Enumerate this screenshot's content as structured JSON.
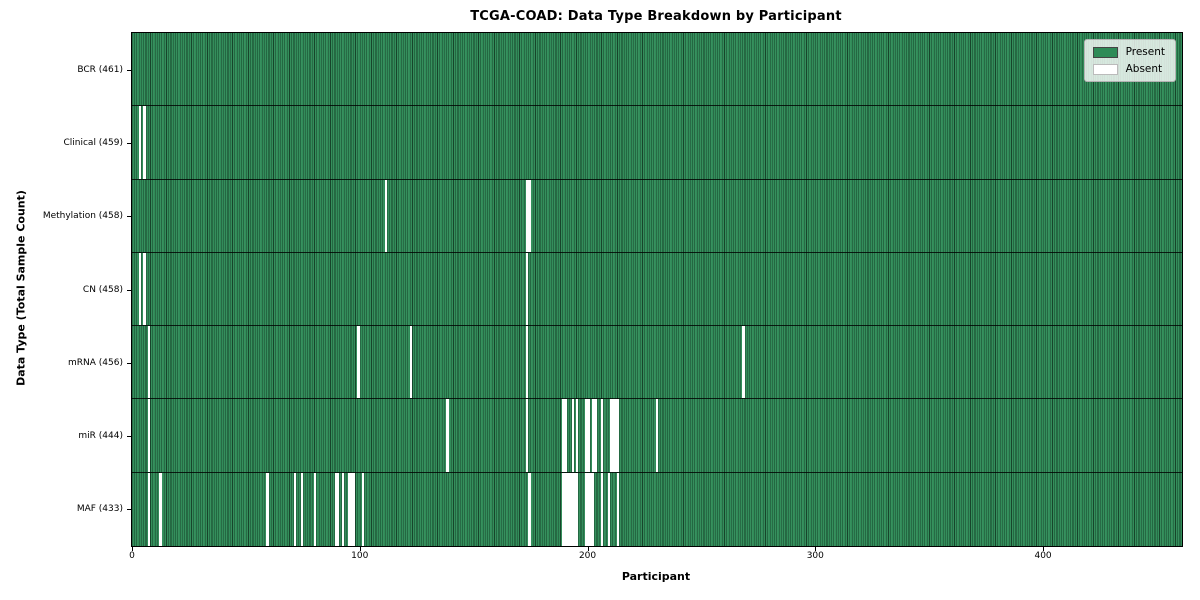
{
  "chart_data": {
    "type": "heatmap",
    "title": "TCGA-COAD: Data Type Breakdown by Participant",
    "xlabel": "Participant",
    "ylabel": "Data Type (Total Sample Count)",
    "n_participants": 461,
    "xlim": [
      0,
      461
    ],
    "x_ticks": [
      0,
      100,
      200,
      300,
      400
    ],
    "grid": false,
    "colors": {
      "present": "#2E8B57",
      "absent": "#FFFFFF",
      "bar_edge": "#000000",
      "frame": "#000000"
    },
    "legend": {
      "position": "upper right",
      "entries": [
        {
          "label": "Present",
          "color": "#2E8B57"
        },
        {
          "label": "Absent",
          "color": "#FFFFFF"
        }
      ]
    },
    "rows": [
      {
        "data_type": "BCR",
        "label": "BCR (461)",
        "count": 461,
        "absent_participants": []
      },
      {
        "data_type": "Clinical",
        "label": "Clinical (459)",
        "count": 459,
        "absent_participants": [
          3,
          5
        ]
      },
      {
        "data_type": "Methylation",
        "label": "Methylation (458)",
        "count": 458,
        "absent_participants": [
          111,
          173,
          174
        ]
      },
      {
        "data_type": "CN",
        "label": "CN (458)",
        "count": 458,
        "absent_participants": [
          3,
          5,
          173
        ]
      },
      {
        "data_type": "mRNA",
        "label": "mRNA (456)",
        "count": 456,
        "absent_participants": [
          7,
          99,
          122,
          173,
          268
        ]
      },
      {
        "data_type": "miR",
        "label": "miR (444)",
        "count": 444,
        "absent_participants": [
          7,
          138,
          173,
          189,
          190,
          193,
          195,
          199,
          200,
          202,
          203,
          206,
          210,
          211,
          212,
          213,
          230
        ]
      },
      {
        "data_type": "MAF",
        "label": "MAF (433)",
        "count": 433,
        "absent_participants": [
          7,
          12,
          59,
          71,
          74,
          80,
          89,
          90,
          92,
          95,
          96,
          97,
          101,
          174,
          189,
          190,
          191,
          192,
          193,
          194,
          195,
          199,
          200,
          201,
          202,
          206,
          209,
          213
        ]
      }
    ]
  }
}
